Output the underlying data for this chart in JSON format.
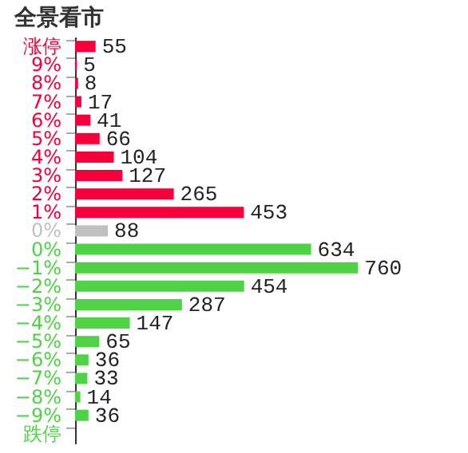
{
  "chart_data": {
    "type": "bar",
    "orientation": "horizontal",
    "title": "全景看市",
    "data_labels": true,
    "grid": false,
    "categories": [
      "涨停",
      "9%",
      "8%",
      "7%",
      "6%",
      "5%",
      "4%",
      "3%",
      "2%",
      "1%",
      "0%",
      "0%",
      "−1%",
      "−2%",
      "−3%",
      "−4%",
      "−5%",
      "−6%",
      "−7%",
      "−8%",
      "−9%",
      "跌停"
    ],
    "values": [
      55,
      5,
      8,
      17,
      41,
      66,
      104,
      127,
      265,
      453,
      88,
      634,
      760,
      454,
      287,
      147,
      65,
      36,
      33,
      14,
      36,
      null
    ],
    "colors": [
      "#f5003a",
      "#f5003a",
      "#f5003a",
      "#f5003a",
      "#f5003a",
      "#f5003a",
      "#f5003a",
      "#f5003a",
      "#f5003a",
      "#f5003a",
      "#c0c0c0",
      "#50d246",
      "#50d246",
      "#50d246",
      "#50d246",
      "#50d246",
      "#50d246",
      "#50d246",
      "#50d246",
      "#50d246",
      "#50d246",
      "#50d246"
    ]
  }
}
